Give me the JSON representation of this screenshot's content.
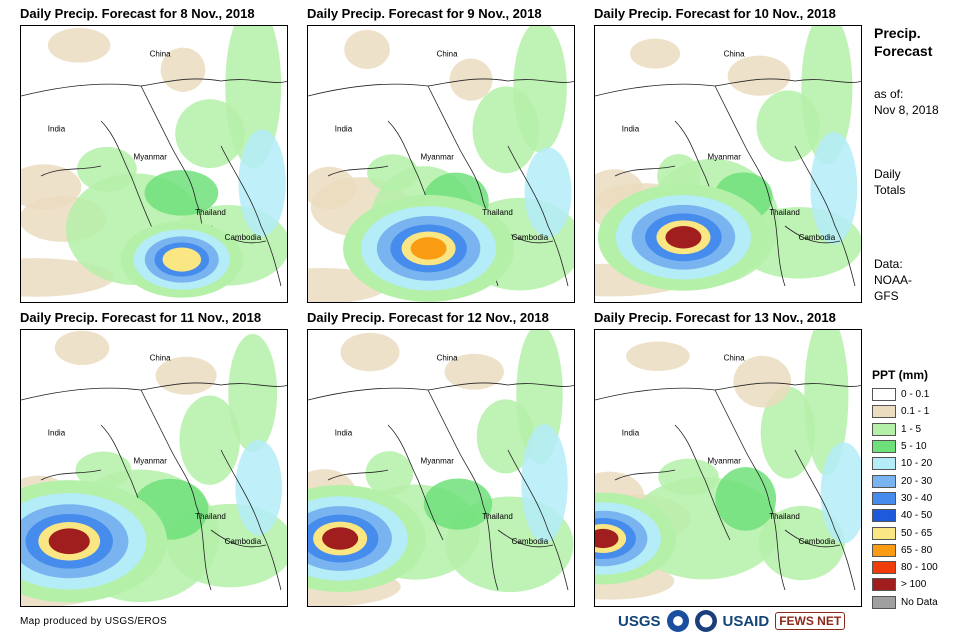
{
  "panels": [
    {
      "title": "Daily Precip. Forecast for 8 Nov., 2018",
      "storm_x": 0.6,
      "storm_y": 0.84,
      "storm_r": 0.1,
      "storm_peak": "50 - 65"
    },
    {
      "title": "Daily Precip. Forecast for 9 Nov., 2018",
      "storm_x": 0.45,
      "storm_y": 0.8,
      "storm_r": 0.14,
      "storm_peak": "65 - 80"
    },
    {
      "title": "Daily Precip. Forecast for 10 Nov., 2018",
      "storm_x": 0.33,
      "storm_y": 0.76,
      "storm_r": 0.14,
      "storm_peak": "> 100"
    },
    {
      "title": "Daily Precip. Forecast for 11 Nov., 2018",
      "storm_x": 0.18,
      "storm_y": 0.76,
      "storm_r": 0.16,
      "storm_peak": "> 100"
    },
    {
      "title": "Daily Precip. Forecast for 12 Nov., 2018",
      "storm_x": 0.12,
      "storm_y": 0.75,
      "storm_r": 0.14,
      "storm_peak": "> 100"
    },
    {
      "title": "Daily Precip. Forecast for 13 Nov., 2018",
      "storm_x": 0.03,
      "storm_y": 0.75,
      "storm_r": 0.12,
      "storm_peak": "> 100"
    }
  ],
  "map_labels": {
    "china": "China",
    "india": "India",
    "myanmar": "Myanmar",
    "thailand": "Thailand",
    "cambodia": "Cambodia"
  },
  "side": {
    "title_line1": "Precip.",
    "title_line2": "Forecast",
    "asof_line1": "as of:",
    "asof_line2": "Nov 8, 2018",
    "totals_line1": "Daily",
    "totals_line2": "Totals",
    "data_line1": "Data:",
    "data_line2": "NOAA-",
    "data_line3": "GFS"
  },
  "legend": {
    "title": "PPT (mm)",
    "items": [
      {
        "label": "0 - 0.1",
        "color": "#ffffff"
      },
      {
        "label": "0.1 - 1",
        "color": "#ebdcc0"
      },
      {
        "label": "1 - 5",
        "color": "#b4f0a8"
      },
      {
        "label": "5 - 10",
        "color": "#6ee07a"
      },
      {
        "label": "10 - 20",
        "color": "#b4ecf8"
      },
      {
        "label": "20 - 30",
        "color": "#7ab4f0"
      },
      {
        "label": "30 - 40",
        "color": "#468cec"
      },
      {
        "label": "40 - 50",
        "color": "#1e5adc"
      },
      {
        "label": "50 - 65",
        "color": "#fae682"
      },
      {
        "label": "65 - 80",
        "color": "#fa9b14"
      },
      {
        "label": "80 - 100",
        "color": "#f03c0a"
      },
      {
        "label": "> 100",
        "color": "#a01e1e"
      },
      {
        "label": "No Data",
        "color": "#a0a0a0"
      }
    ]
  },
  "credit": "Map produced by USGS/EROS",
  "logos": {
    "usgs": "USGS",
    "usaid": "USAID",
    "fewsnet": "FEWS NET"
  }
}
